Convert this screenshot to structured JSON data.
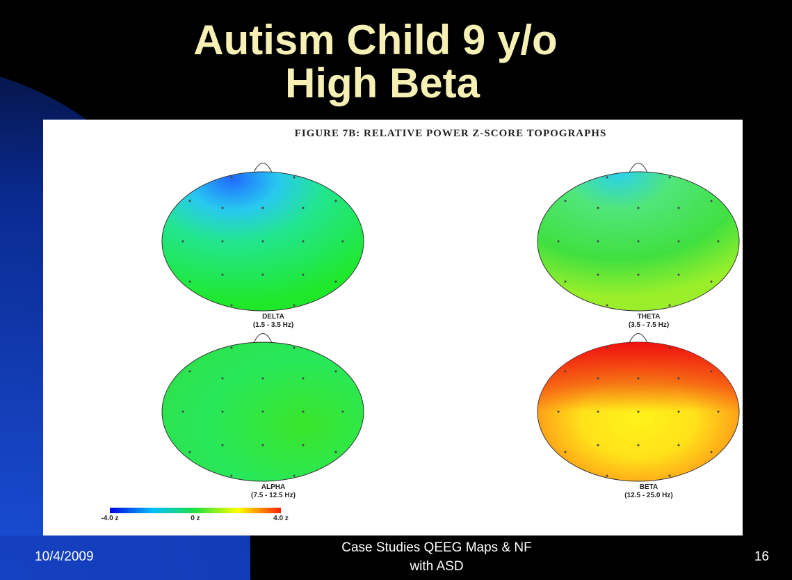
{
  "header": {
    "title_lines": [
      "Autism Child 9 y/o",
      "High Beta"
    ]
  },
  "figure": {
    "title": "FIGURE 7B: RELATIVE POWER Z-SCORE TOPOGRAPHS",
    "maps": [
      {
        "band": "DELTA",
        "range": "(1.5 - 3.5 Hz)"
      },
      {
        "band": "THETA",
        "range": "(3.5 - 7.5 Hz)"
      },
      {
        "band": "ALPHA",
        "range": "(7.5 - 12.5 Hz)"
      },
      {
        "band": "BETA",
        "range": "(12.5 - 25.0 Hz)"
      }
    ],
    "colorbar_labels": [
      "-4.0 z",
      "0 z",
      "4.0 z"
    ]
  },
  "footer": {
    "date": "10/4/2009",
    "text_lines": [
      "Case Studies QEEG Maps & NF",
      "with ASD"
    ],
    "page": "16"
  }
}
